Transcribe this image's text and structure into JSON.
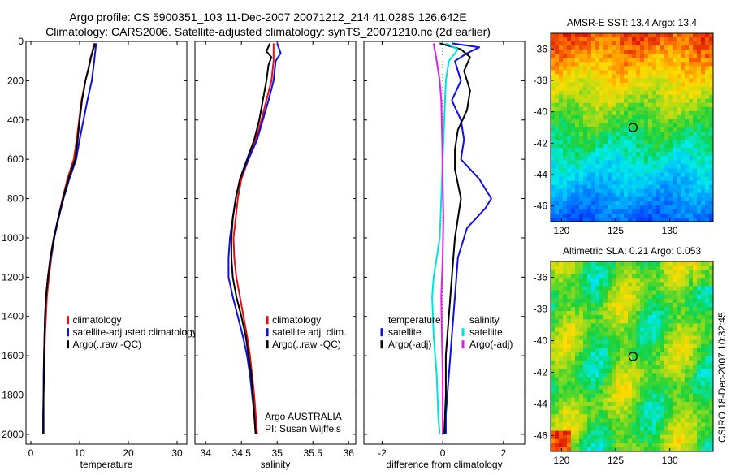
{
  "header": {
    "line1": "Argo profile: CS 5900351_103 11-Dec-2007 20071212_214 41.028S 126.642E",
    "line2": "Climatology: CARS2006. Satellite-adjusted climatology: synTS_20071210.nc (2d earlier)"
  },
  "colors": {
    "climatology": "#e01010",
    "satellite": "#1010e0",
    "argo": "#000000",
    "sal_satellite": "#00e0e0",
    "sal_argo": "#e020e0"
  },
  "credit": {
    "line1": "Argo AUSTRALIA",
    "line2": "PI: Susan Wijffels"
  },
  "side_label": "CSIRO 18-Dec-2007 10:32:45",
  "chart_data": [
    {
      "type": "line",
      "panel": "temperature",
      "xlabel": "temperature",
      "ylabel": "",
      "xlim": [
        -1,
        32
      ],
      "ylim": [
        2050,
        0
      ],
      "y_inverted": true,
      "xticks": [
        0,
        10,
        20,
        30
      ],
      "yticks": [
        0,
        200,
        400,
        600,
        800,
        1000,
        1200,
        1400,
        1600,
        1800,
        2000
      ],
      "legend": {
        "placement": "lower-right",
        "entries": [
          {
            "label": "climatology",
            "color": "#e01010"
          },
          {
            "label": "satellite-adjusted climatology",
            "color": "#1010e0"
          },
          {
            "label": "Argo(..raw -QC)",
            "color": "#000000"
          }
        ]
      },
      "series": [
        {
          "name": "climatology",
          "color": "#e01010",
          "points": [
            [
              13.0,
              10
            ],
            [
              12.2,
              100
            ],
            [
              11.2,
              200
            ],
            [
              10.4,
              300
            ],
            [
              9.9,
              400
            ],
            [
              9.4,
              500
            ],
            [
              8.8,
              600
            ],
            [
              7.5,
              700
            ],
            [
              6.5,
              800
            ],
            [
              5.6,
              900
            ],
            [
              4.8,
              1000
            ],
            [
              4.2,
              1100
            ],
            [
              3.7,
              1200
            ],
            [
              3.3,
              1300
            ],
            [
              3.1,
              1400
            ],
            [
              2.9,
              1500
            ],
            [
              2.8,
              1600
            ]
          ]
        },
        {
          "name": "satellite-adjusted climatology",
          "color": "#1010e0",
          "points": [
            [
              13.4,
              10
            ],
            [
              13.0,
              100
            ],
            [
              12.5,
              200
            ],
            [
              11.6,
              300
            ],
            [
              10.8,
              400
            ],
            [
              10.0,
              500
            ],
            [
              9.3,
              600
            ],
            [
              7.9,
              700
            ],
            [
              6.7,
              800
            ],
            [
              5.7,
              900
            ],
            [
              4.8,
              1000
            ],
            [
              4.1,
              1100
            ],
            [
              3.5,
              1200
            ],
            [
              3.1,
              1300
            ],
            [
              2.9,
              1400
            ],
            [
              2.8,
              1500
            ],
            [
              2.7,
              1600
            ],
            [
              2.6,
              1700
            ],
            [
              2.6,
              1800
            ],
            [
              2.5,
              1900
            ],
            [
              2.5,
              2000
            ]
          ]
        },
        {
          "name": "Argo(..raw -QC)",
          "color": "#000000",
          "points": [
            [
              13.2,
              10
            ],
            [
              12.8,
              40
            ],
            [
              12.3,
              80
            ],
            [
              11.8,
              140
            ],
            [
              11.2,
              200
            ],
            [
              10.5,
              300
            ],
            [
              10.0,
              400
            ],
            [
              9.6,
              500
            ],
            [
              9.1,
              600
            ],
            [
              7.7,
              700
            ],
            [
              6.6,
              800
            ],
            [
              5.6,
              900
            ],
            [
              4.7,
              1000
            ],
            [
              4.0,
              1100
            ],
            [
              3.5,
              1200
            ],
            [
              3.1,
              1300
            ],
            [
              2.9,
              1400
            ],
            [
              2.8,
              1500
            ],
            [
              2.7,
              1600
            ],
            [
              2.7,
              1700
            ],
            [
              2.6,
              1800
            ],
            [
              2.6,
              1900
            ],
            [
              2.6,
              2000
            ]
          ]
        }
      ]
    },
    {
      "type": "line",
      "panel": "salinity",
      "xlabel": "salinity",
      "ylabel": "",
      "xlim": [
        33.85,
        36.1
      ],
      "ylim": [
        2050,
        0
      ],
      "y_inverted": true,
      "xticks": [
        34,
        34.5,
        35,
        35.5,
        36
      ],
      "legend": {
        "placement": "lower-right",
        "entries": [
          {
            "label": "climatology",
            "color": "#e01010"
          },
          {
            "label": "satellite adj. clim.",
            "color": "#1010e0"
          },
          {
            "label": "Argo(..raw -QC)",
            "color": "#000000"
          }
        ]
      },
      "series": [
        {
          "name": "climatology",
          "color": "#e01010",
          "points": [
            [
              34.95,
              10
            ],
            [
              34.95,
              100
            ],
            [
              34.92,
              200
            ],
            [
              34.85,
              300
            ],
            [
              34.78,
              400
            ],
            [
              34.7,
              500
            ],
            [
              34.6,
              600
            ],
            [
              34.5,
              700
            ],
            [
              34.45,
              800
            ],
            [
              34.42,
              900
            ],
            [
              34.39,
              1000
            ],
            [
              34.4,
              1100
            ],
            [
              34.43,
              1200
            ],
            [
              34.48,
              1300
            ],
            [
              34.53,
              1400
            ],
            [
              34.58,
              1500
            ],
            [
              34.62,
              1600
            ],
            [
              34.65,
              1700
            ],
            [
              34.68,
              1800
            ],
            [
              34.7,
              1900
            ],
            [
              34.72,
              2000
            ]
          ]
        },
        {
          "name": "satellite adj. clim.",
          "color": "#1010e0",
          "points": [
            [
              35.0,
              10
            ],
            [
              35.05,
              60
            ],
            [
              34.98,
              100
            ],
            [
              34.95,
              200
            ],
            [
              34.88,
              300
            ],
            [
              34.8,
              400
            ],
            [
              34.72,
              500
            ],
            [
              34.6,
              600
            ],
            [
              34.48,
              700
            ],
            [
              34.42,
              800
            ],
            [
              34.38,
              900
            ],
            [
              34.34,
              1000
            ],
            [
              34.32,
              1100
            ],
            [
              34.32,
              1200
            ],
            [
              34.38,
              1300
            ],
            [
              34.45,
              1400
            ],
            [
              34.52,
              1500
            ],
            [
              34.58,
              1600
            ],
            [
              34.62,
              1700
            ],
            [
              34.65,
              1800
            ],
            [
              34.68,
              1900
            ],
            [
              34.7,
              2000
            ]
          ]
        },
        {
          "name": "Argo(..raw -QC)",
          "color": "#000000",
          "points": [
            [
              34.9,
              10
            ],
            [
              34.85,
              50
            ],
            [
              34.92,
              80
            ],
            [
              34.88,
              120
            ],
            [
              34.85,
              200
            ],
            [
              34.8,
              300
            ],
            [
              34.75,
              400
            ],
            [
              34.68,
              500
            ],
            [
              34.58,
              600
            ],
            [
              34.48,
              700
            ],
            [
              34.42,
              800
            ],
            [
              34.38,
              900
            ],
            [
              34.36,
              1000
            ],
            [
              34.36,
              1100
            ],
            [
              34.38,
              1200
            ],
            [
              34.43,
              1300
            ],
            [
              34.5,
              1400
            ],
            [
              34.56,
              1500
            ],
            [
              34.6,
              1600
            ],
            [
              34.64,
              1700
            ],
            [
              34.66,
              1800
            ],
            [
              34.68,
              1900
            ],
            [
              34.7,
              2000
            ]
          ]
        }
      ]
    },
    {
      "type": "line",
      "panel": "difference",
      "xlabel": "difference from climatology",
      "ylabel": "",
      "xlim": [
        -2.6,
        2.7
      ],
      "ylim": [
        2050,
        0
      ],
      "y_inverted": true,
      "xticks": [
        -2,
        0,
        2
      ],
      "legend": {
        "placement": "lower-right",
        "groups": [
          {
            "title": "temperature",
            "entries": [
              {
                "label": "satellite",
                "color": "#1010e0"
              },
              {
                "label": "Argo(-adj)",
                "color": "#000000"
              }
            ]
          },
          {
            "title": "salinity",
            "entries": [
              {
                "label": "satellite",
                "color": "#00e0e0"
              },
              {
                "label": "Argo(-adj)",
                "color": "#e020e0"
              }
            ]
          }
        ]
      },
      "series": [
        {
          "name": "temperature satellite",
          "color": "#1010e0",
          "points": [
            [
              0.3,
              10
            ],
            [
              1.2,
              30
            ],
            [
              0.8,
              60
            ],
            [
              0.4,
              100
            ],
            [
              0.6,
              200
            ],
            [
              0.3,
              300
            ],
            [
              0.6,
              400
            ],
            [
              0.7,
              500
            ],
            [
              0.6,
              600
            ],
            [
              1.2,
              700
            ],
            [
              1.6,
              800
            ],
            [
              1.4,
              850
            ],
            [
              0.8,
              950
            ],
            [
              0.5,
              1100
            ],
            [
              0.4,
              1300
            ],
            [
              0.3,
              1500
            ],
            [
              0.2,
              1700
            ],
            [
              0.1,
              1900
            ],
            [
              0.1,
              2000
            ]
          ]
        },
        {
          "name": "temperature Argo(-adj)",
          "color": "#000000",
          "points": [
            [
              -0.1,
              10
            ],
            [
              0.6,
              40
            ],
            [
              0.9,
              80
            ],
            [
              0.7,
              150
            ],
            [
              0.9,
              250
            ],
            [
              0.8,
              350
            ],
            [
              0.5,
              450
            ],
            [
              0.4,
              550
            ],
            [
              0.4,
              650
            ],
            [
              0.6,
              800
            ],
            [
              0.5,
              900
            ],
            [
              0.4,
              1000
            ],
            [
              0.3,
              1200
            ],
            [
              0.2,
              1400
            ],
            [
              0.1,
              1600
            ],
            [
              0.1,
              1800
            ],
            [
              0.05,
              2000
            ]
          ]
        },
        {
          "name": "salinity satellite",
          "color": "#00e0e0",
          "points": [
            [
              0.1,
              10
            ],
            [
              0.5,
              40
            ],
            [
              0.2,
              100
            ],
            [
              0.1,
              200
            ],
            [
              0.05,
              400
            ],
            [
              0.0,
              600
            ],
            [
              -0.05,
              800
            ],
            [
              -0.1,
              1000
            ],
            [
              -0.2,
              1100
            ],
            [
              -0.3,
              1200
            ],
            [
              -0.35,
              1300
            ],
            [
              -0.3,
              1500
            ],
            [
              -0.2,
              1700
            ],
            [
              -0.15,
              1900
            ],
            [
              -0.1,
              2000
            ]
          ]
        },
        {
          "name": "salinity Argo(-adj)",
          "color": "#e020e0",
          "points": [
            [
              -0.3,
              10
            ],
            [
              -0.2,
              100
            ],
            [
              -0.1,
              200
            ],
            [
              -0.05,
              300
            ],
            [
              -0.02,
              500
            ],
            [
              0.0,
              700
            ],
            [
              0.02,
              900
            ],
            [
              0.0,
              1100
            ],
            [
              -0.05,
              1300
            ],
            [
              -0.03,
              1500
            ],
            [
              0.0,
              1700
            ],
            [
              0.0,
              1900
            ],
            [
              0.0,
              2000
            ]
          ]
        }
      ]
    },
    {
      "type": "heatmap",
      "panel": "sst-map",
      "title": "AMSR-E SST: 13.4 Argo: 13.4",
      "xlim": [
        119,
        134
      ],
      "ylim": [
        -47,
        -35
      ],
      "xticks": [
        120,
        125,
        130
      ],
      "yticks": [
        -36,
        -38,
        -40,
        -42,
        -44,
        -46
      ],
      "argo_position": [
        126.6,
        -41.0
      ]
    },
    {
      "type": "heatmap",
      "panel": "sla-map",
      "title": "Altimetric SLA: 0.21 Argo: 0.053",
      "xlim": [
        119,
        134
      ],
      "ylim": [
        -47,
        -35
      ],
      "xticks": [
        120,
        125,
        130
      ],
      "yticks": [
        -36,
        -38,
        -40,
        -42,
        -44,
        -46
      ],
      "argo_position": [
        126.6,
        -41.0
      ]
    }
  ]
}
